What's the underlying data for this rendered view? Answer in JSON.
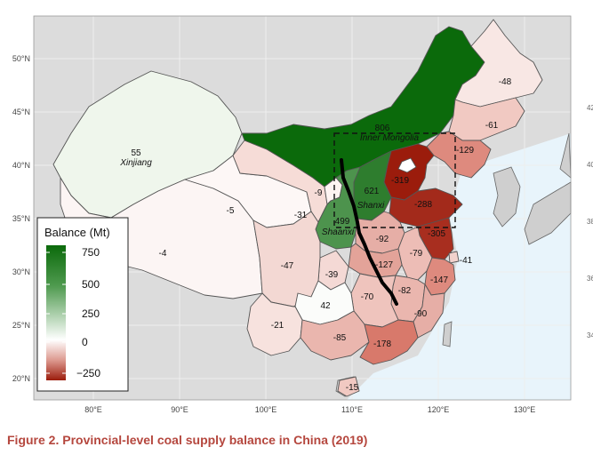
{
  "caption": "Figure 2. Provincial-level coal supply balance in China (2019)",
  "map": {
    "lat_ticks": [
      "50°N",
      "45°N",
      "40°N",
      "35°N",
      "30°N",
      "25°N",
      "20°N"
    ],
    "lon_ticks": [
      "80°E",
      "90°E",
      "100°E",
      "110°E",
      "120°E",
      "130°E"
    ],
    "right_edge_ticks": [
      "42",
      "40",
      "38",
      "36",
      "34"
    ],
    "legend": {
      "title": "Balance (Mt)",
      "ticks": [
        "750",
        "500",
        "250",
        "0",
        "−250"
      ],
      "scale_min": -350,
      "scale_max": 820,
      "color_high": "#0b6a0b",
      "color_mid": "#ffffff",
      "color_low": "#9b1c0c"
    },
    "provinces": [
      {
        "label": "Inner Mongolia",
        "value": "806",
        "balance": 806
      },
      {
        "label": "Xinjiang",
        "value": "55",
        "balance": 55
      },
      {
        "label": "Shanxi",
        "value": "621",
        "balance": 621
      },
      {
        "label": "Shaanxi",
        "value": "499",
        "balance": 499
      },
      {
        "label": "",
        "value": "-48",
        "balance": -48
      },
      {
        "label": "",
        "value": "-61",
        "balance": -61
      },
      {
        "label": "",
        "value": "-129",
        "balance": -129
      },
      {
        "label": "",
        "value": "-319",
        "balance": -319
      },
      {
        "label": "",
        "value": "-288",
        "balance": -288
      },
      {
        "label": "",
        "value": "-305",
        "balance": -305
      },
      {
        "label": "",
        "value": "-41",
        "balance": -41
      },
      {
        "label": "",
        "value": "-92",
        "balance": -92
      },
      {
        "label": "",
        "value": "-79",
        "balance": -79
      },
      {
        "label": "",
        "value": "-127",
        "balance": -127
      },
      {
        "label": "",
        "value": "-147",
        "balance": -147
      },
      {
        "label": "",
        "value": "-82",
        "balance": -82
      },
      {
        "label": "",
        "value": "-70",
        "balance": -70
      },
      {
        "label": "",
        "value": "-90",
        "balance": -90
      },
      {
        "label": "",
        "value": "-178",
        "balance": -178
      },
      {
        "label": "",
        "value": "-85",
        "balance": -85
      },
      {
        "label": "",
        "value": "42",
        "balance": 42
      },
      {
        "label": "",
        "value": "-39",
        "balance": -39
      },
      {
        "label": "",
        "value": "-47",
        "balance": -47
      },
      {
        "label": "",
        "value": "-21",
        "balance": -21
      },
      {
        "label": "",
        "value": "-31",
        "balance": -31
      },
      {
        "label": "",
        "value": "-9",
        "balance": -9
      },
      {
        "label": "",
        "value": "-5",
        "balance": -5
      },
      {
        "label": "",
        "value": "-4",
        "balance": -4
      },
      {
        "label": "",
        "value": "-15",
        "balance": -15
      }
    ]
  }
}
